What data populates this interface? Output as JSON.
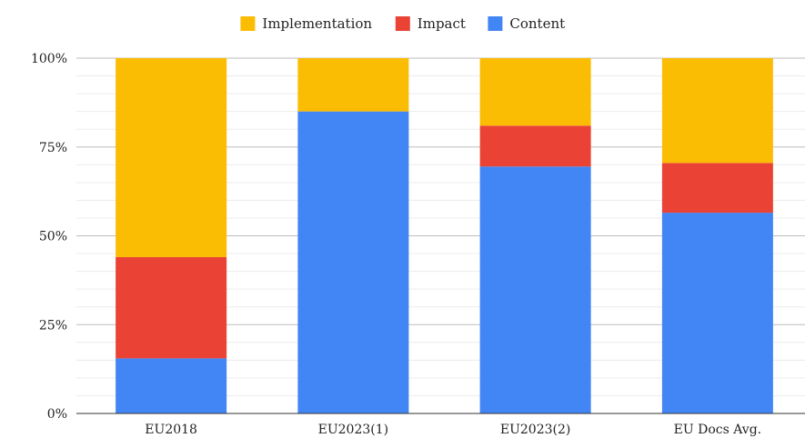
{
  "chart_data": {
    "type": "bar",
    "stacked": true,
    "percent": true,
    "title": "",
    "xlabel": "",
    "ylabel": "",
    "ylim": [
      0,
      100
    ],
    "yticks": [
      "0%",
      "25%",
      "50%",
      "75%",
      "100%"
    ],
    "grid": true,
    "legend_position": "top-center",
    "categories": [
      "EU2018",
      "EU2023(1)",
      "EU2023(2)",
      "EU Docs Avg."
    ],
    "series": [
      {
        "name": "Content",
        "color": "#4285f4",
        "values": [
          15.5,
          85,
          69.5,
          56.5
        ]
      },
      {
        "name": "Impact",
        "color": "#ea4335",
        "values": [
          28.5,
          0,
          11.5,
          14
        ]
      },
      {
        "name": "Implementation",
        "color": "#fbbc04",
        "values": [
          56,
          15,
          19,
          29.5
        ]
      }
    ],
    "legend_order": [
      "Implementation",
      "Impact",
      "Content"
    ]
  }
}
